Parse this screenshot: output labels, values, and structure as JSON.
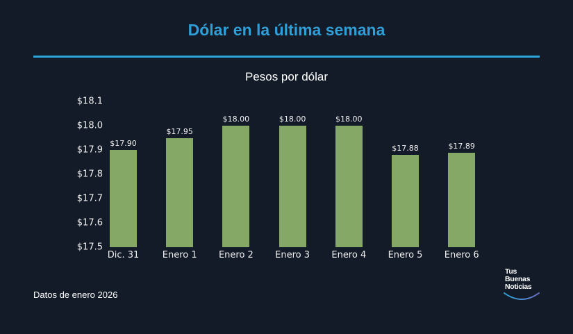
{
  "header": {
    "title": "Dólar en la última semana",
    "subtitle": "Pesos por dólar"
  },
  "colors": {
    "background": "#131b28",
    "accent": "#2f9fd8",
    "bar": "#85a866"
  },
  "yaxis": {
    "ticks": [
      "$18.1",
      "$18.0",
      "$17.9",
      "$17.8",
      "$17.7",
      "$17.6",
      "$17.5"
    ]
  },
  "bars": [
    {
      "label": "Dic. 31",
      "value_label": "$17.90"
    },
    {
      "label": "Enero 1",
      "value_label": "$17.95"
    },
    {
      "label": "Enero 2",
      "value_label": "$18.00"
    },
    {
      "label": "Enero 3",
      "value_label": "$18.00"
    },
    {
      "label": "Enero 4",
      "value_label": "$18.00"
    },
    {
      "label": "Enero 5",
      "value_label": "$17.88"
    },
    {
      "label": "Enero 6",
      "value_label": "$17.89"
    }
  ],
  "footer": {
    "note": "Datos de enero 2026",
    "logo": [
      "Tus",
      "Buenas",
      "Noticias"
    ]
  },
  "chart_data": {
    "type": "bar",
    "title": "Dólar en la última semana",
    "subtitle": "Pesos por dólar",
    "categories": [
      "Dic. 31",
      "Enero 1",
      "Enero 2",
      "Enero 3",
      "Enero 4",
      "Enero 5",
      "Enero 6"
    ],
    "values": [
      17.9,
      17.95,
      18.0,
      18.0,
      18.0,
      17.88,
      17.89
    ],
    "data_labels": [
      "$17.90",
      "$17.95",
      "$18.00",
      "$18.00",
      "$18.00",
      "$17.88",
      "$17.89"
    ],
    "xlabel": "",
    "ylabel": "Pesos por dólar",
    "ylim": [
      17.5,
      18.1
    ],
    "yticks": [
      17.5,
      17.6,
      17.7,
      17.8,
      17.9,
      18.0,
      18.1
    ],
    "grid": false,
    "legend": null,
    "annotation": "Datos de enero 2026"
  }
}
